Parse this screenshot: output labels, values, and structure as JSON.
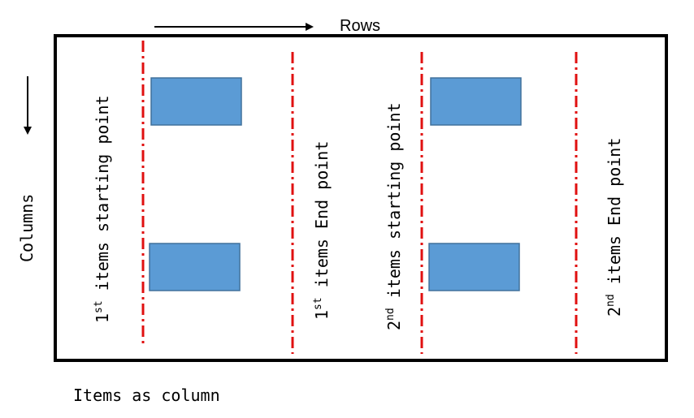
{
  "top_axis": {
    "label": "Rows"
  },
  "side_axis": {
    "label": "Columns"
  },
  "caption": "Items as column",
  "vertical_labels": [
    {
      "num": "1",
      "sup": "st",
      "text": " items starting point"
    },
    {
      "num": "1",
      "sup": "st",
      "text": " items End point"
    },
    {
      "num": "2",
      "sup": "nd",
      "text": " items starting point"
    },
    {
      "num": "2",
      "sup": "nd",
      "text": " items End point"
    }
  ],
  "colors": {
    "frame": "#000000",
    "divider": "#e01010",
    "item_fill": "#5b9bd5",
    "item_stroke": "#41719c"
  }
}
